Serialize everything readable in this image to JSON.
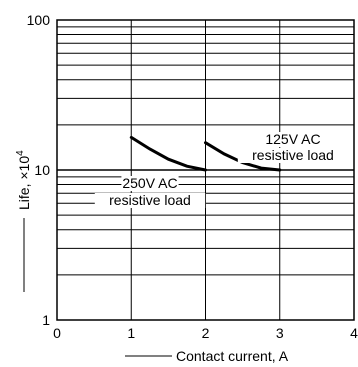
{
  "chart_data": {
    "type": "line",
    "title": "",
    "xlabel": "Contact current, A",
    "ylabel_main": "Life, ×10",
    "ylabel_exp": "4",
    "x_ticks": [
      "0",
      "1",
      "2",
      "3",
      "4"
    ],
    "y_ticks": [
      "1",
      "10",
      "100"
    ],
    "xlim": [
      0,
      4
    ],
    "ylim": [
      1,
      100
    ],
    "yscale": "log",
    "grid": "log-minor-horizontal",
    "series": [
      {
        "label_lines": [
          "250V AC",
          "resistive load"
        ],
        "points": [
          [
            1.0,
            16.5
          ],
          [
            1.25,
            13.8
          ],
          [
            1.5,
            11.8
          ],
          [
            1.75,
            10.6
          ],
          [
            2.0,
            10.0
          ]
        ]
      },
      {
        "label_lines": [
          "125V AC",
          "resistive load"
        ],
        "points": [
          [
            2.0,
            15.2
          ],
          [
            2.25,
            12.8
          ],
          [
            2.5,
            11.2
          ],
          [
            2.75,
            10.3
          ],
          [
            3.0,
            10.0
          ]
        ]
      }
    ]
  }
}
